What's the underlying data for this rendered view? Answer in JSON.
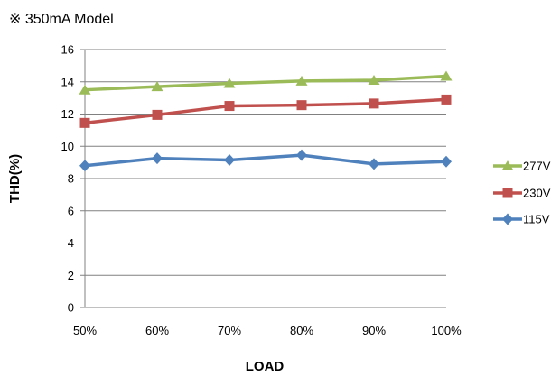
{
  "chart_data": {
    "type": "line",
    "title": "※ 350mA Model",
    "xlabel": "LOAD",
    "ylabel": "THD(%)",
    "categories": [
      "50%",
      "60%",
      "70%",
      "80%",
      "90%",
      "100%"
    ],
    "ylim": [
      0,
      16
    ],
    "yticks": [
      "0",
      "2",
      "4",
      "6",
      "8",
      "10",
      "12",
      "14",
      "16"
    ],
    "grid": true,
    "legend_position": "right",
    "series": [
      {
        "name": "277V",
        "color": "#9BBB59",
        "marker": "triangle",
        "values": [
          13.5,
          13.7,
          13.9,
          14.05,
          14.1,
          14.35
        ]
      },
      {
        "name": "230V",
        "color": "#C0504D",
        "marker": "square",
        "values": [
          11.45,
          11.95,
          12.5,
          12.55,
          12.65,
          12.9
        ]
      },
      {
        "name": "115V",
        "color": "#4F81BD",
        "marker": "diamond",
        "values": [
          8.8,
          9.25,
          9.15,
          9.45,
          8.9,
          9.05
        ]
      }
    ]
  }
}
